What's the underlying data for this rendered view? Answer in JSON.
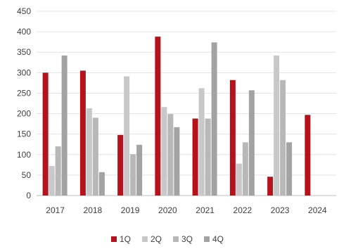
{
  "chart_data": {
    "type": "bar",
    "categories": [
      "2017",
      "2018",
      "2019",
      "2020",
      "2021",
      "2022",
      "2023",
      "2024"
    ],
    "series": [
      {
        "name": "1Q",
        "color": "#b5121b",
        "values": [
          300,
          305,
          148,
          388,
          188,
          282,
          46,
          197
        ]
      },
      {
        "name": "2Q",
        "color": "#c8c8c8",
        "values": [
          72,
          213,
          291,
          216,
          262,
          78,
          342,
          null
        ]
      },
      {
        "name": "3Q",
        "color": "#b8b8b8",
        "values": [
          120,
          190,
          101,
          199,
          188,
          130,
          282,
          null
        ]
      },
      {
        "name": "4Q",
        "color": "#a3a3a3",
        "values": [
          342,
          57,
          124,
          167,
          374,
          257,
          130,
          null
        ]
      }
    ],
    "ylim": [
      0,
      450
    ],
    "yticks": [
      0,
      50,
      100,
      150,
      200,
      250,
      300,
      350,
      400,
      450
    ],
    "grid": true,
    "legend_position": "bottom"
  }
}
